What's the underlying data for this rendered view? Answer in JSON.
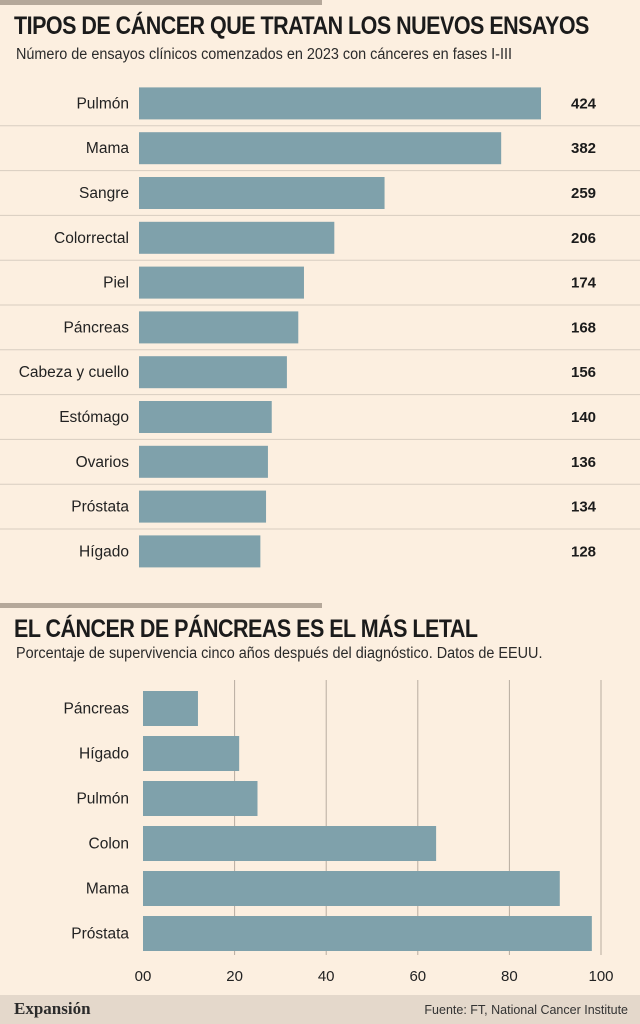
{
  "chart_data": [
    {
      "type": "bar",
      "orientation": "horizontal",
      "title": "TIPOS DE CÁNCER QUE TRATAN LOS NUEVOS ENSAYOS",
      "subtitle": "Número de ensayos clínicos comenzados en 2023 con cánceres en fases I-III",
      "categories": [
        "Pulmón",
        "Mama",
        "Sangre",
        "Colorrectal",
        "Piel",
        "Páncreas",
        "Cabeza y cuello",
        "Estómago",
        "Ovarios",
        "Próstata",
        "Hígado"
      ],
      "values": [
        424,
        382,
        259,
        206,
        174,
        168,
        156,
        140,
        136,
        134,
        128
      ],
      "data_labels": [
        "424",
        "382",
        "259",
        "206",
        "174",
        "168",
        "156",
        "140",
        "136",
        "134",
        "128"
      ],
      "xlim": [
        0,
        424
      ],
      "grid": false,
      "colors": {
        "bar": "#7fa1ab",
        "separator": "#d8cdc1"
      }
    },
    {
      "type": "bar",
      "orientation": "horizontal",
      "title": "EL CÁNCER DE PÁNCREAS ES EL MÁS LETAL",
      "subtitle": "Porcentaje de supervivencia cinco años después del diagnóstico. Datos de EEUU.",
      "categories": [
        "Páncreas",
        "Hígado",
        "Pulmón",
        "Colon",
        "Mama",
        "Próstata"
      ],
      "values": [
        12,
        21,
        25,
        64,
        91,
        98
      ],
      "xlim": [
        0,
        100
      ],
      "xticks": [
        0,
        20,
        40,
        60,
        80,
        100
      ],
      "xtick_labels": [
        "00",
        "20",
        "40",
        "60",
        "80",
        "100"
      ],
      "grid": true,
      "colors": {
        "bar": "#7fa1ab",
        "grid": "#b7aca0"
      }
    }
  ],
  "footer": {
    "logo": "Expansión",
    "source": "Fuente: FT, National Cancer Institute"
  }
}
